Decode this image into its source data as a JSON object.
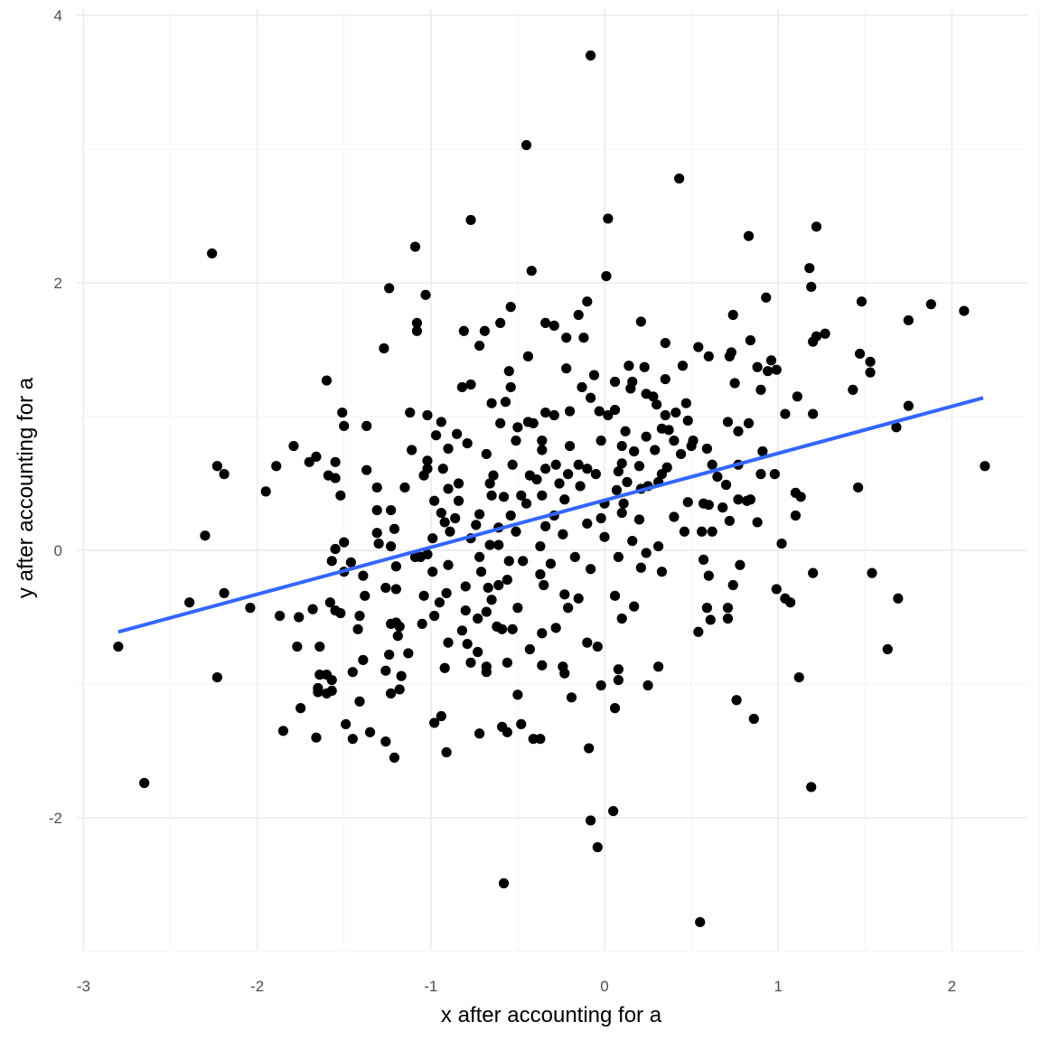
{
  "chart_data": {
    "type": "scatter",
    "title": "",
    "xlabel": "x after accounting for a",
    "ylabel": "y after accounting for a",
    "xlim": [
      -3.04,
      2.42
    ],
    "ylim": [
      -2.98,
      4.0
    ],
    "x_ticks": [
      -3,
      -2,
      -1,
      0,
      1,
      2
    ],
    "y_ticks": [
      -2,
      0,
      2,
      4
    ],
    "x_tick_labels": [
      "-3",
      "-2",
      "-1",
      "0",
      "1",
      "2"
    ],
    "y_tick_labels": [
      "-2",
      "0",
      "2",
      "4"
    ],
    "grid": true,
    "point_color": "#000000",
    "fit_line": {
      "type": "linear",
      "color": "#3366FF",
      "x": [
        -2.8,
        2.18
      ],
      "y": [
        -0.61,
        1.14
      ]
    },
    "points": [
      [
        -0.08,
        3.7
      ],
      [
        -0.45,
        3.03
      ],
      [
        0.43,
        2.78
      ],
      [
        0.02,
        2.48
      ],
      [
        -0.77,
        2.47
      ],
      [
        -2.26,
        2.22
      ],
      [
        1.22,
        2.42
      ],
      [
        0.83,
        2.35
      ],
      [
        -1.09,
        2.27
      ],
      [
        -0.42,
        2.09
      ],
      [
        0.01,
        2.05
      ],
      [
        1.18,
        2.11
      ],
      [
        1.19,
        1.97
      ],
      [
        -1.24,
        1.96
      ],
      [
        -1.03,
        1.91
      ],
      [
        0.93,
        1.89
      ],
      [
        1.48,
        1.86
      ],
      [
        1.88,
        1.84
      ],
      [
        2.07,
        1.79
      ],
      [
        1.75,
        1.72
      ],
      [
        -0.1,
        1.86
      ],
      [
        -0.54,
        1.82
      ],
      [
        0.74,
        1.76
      ],
      [
        -0.15,
        1.76
      ],
      [
        0.21,
        1.71
      ],
      [
        -1.08,
        1.7
      ],
      [
        -1.08,
        1.64
      ],
      [
        -0.6,
        1.7
      ],
      [
        -0.34,
        1.7
      ],
      [
        -0.29,
        1.68
      ],
      [
        -0.81,
        1.64
      ],
      [
        -0.69,
        1.64
      ],
      [
        -0.72,
        1.53
      ],
      [
        -0.22,
        1.59
      ],
      [
        -0.12,
        1.59
      ],
      [
        1.27,
        1.62
      ],
      [
        1.22,
        1.6
      ],
      [
        1.2,
        1.56
      ],
      [
        0.84,
        1.57
      ],
      [
        0.35,
        1.55
      ],
      [
        0.54,
        1.52
      ],
      [
        -1.27,
        1.51
      ],
      [
        -0.44,
        1.45
      ],
      [
        0.73,
        1.48
      ],
      [
        0.72,
        1.45
      ],
      [
        0.6,
        1.45
      ],
      [
        1.47,
        1.47
      ],
      [
        1.53,
        1.41
      ],
      [
        1.53,
        1.33
      ],
      [
        0.96,
        1.42
      ],
      [
        0.88,
        1.37
      ],
      [
        0.99,
        1.35
      ],
      [
        0.94,
        1.34
      ],
      [
        0.45,
        1.38
      ],
      [
        -0.22,
        1.36
      ],
      [
        -0.55,
        1.34
      ],
      [
        0.23,
        1.37
      ],
      [
        0.14,
        1.38
      ],
      [
        -0.06,
        1.31
      ],
      [
        0.35,
        1.28
      ],
      [
        -1.6,
        1.27
      ],
      [
        0.06,
        1.26
      ],
      [
        0.16,
        1.26
      ],
      [
        0.75,
        1.25
      ],
      [
        -0.13,
        1.22
      ],
      [
        -0.82,
        1.22
      ],
      [
        -0.77,
        1.24
      ],
      [
        -0.54,
        1.22
      ],
      [
        0.15,
        1.21
      ],
      [
        1.43,
        1.2
      ],
      [
        0.9,
        1.2
      ],
      [
        1.11,
        1.15
      ],
      [
        -0.08,
        1.14
      ],
      [
        0.24,
        1.17
      ],
      [
        0.28,
        1.15
      ],
      [
        0.3,
        1.09
      ],
      [
        0.47,
        1.1
      ],
      [
        -0.65,
        1.1
      ],
      [
        -0.57,
        1.11
      ],
      [
        -1.51,
        1.03
      ],
      [
        -1.12,
        1.03
      ],
      [
        1.75,
        1.08
      ],
      [
        1.04,
        1.02
      ],
      [
        1.2,
        1.02
      ],
      [
        -1.02,
        1.01
      ],
      [
        -0.34,
        1.03
      ],
      [
        -0.29,
        1.01
      ],
      [
        -0.2,
        1.04
      ],
      [
        -0.03,
        1.04
      ],
      [
        0.06,
        1.05
      ],
      [
        0.02,
        1.01
      ],
      [
        0.41,
        1.03
      ],
      [
        0.35,
        1.01
      ],
      [
        -1.5,
        0.93
      ],
      [
        -1.37,
        0.93
      ],
      [
        -0.6,
        0.95
      ],
      [
        -0.44,
        0.96
      ],
      [
        -0.41,
        0.95
      ],
      [
        -0.5,
        0.92
      ],
      [
        -0.94,
        0.96
      ],
      [
        0.48,
        0.97
      ],
      [
        0.71,
        0.96
      ],
      [
        0.83,
        0.95
      ],
      [
        1.68,
        0.92
      ],
      [
        0.12,
        0.89
      ],
      [
        0.33,
        0.91
      ],
      [
        0.37,
        0.9
      ],
      [
        0.24,
        0.85
      ],
      [
        -0.97,
        0.86
      ],
      [
        -0.85,
        0.87
      ],
      [
        0.77,
        0.89
      ],
      [
        -0.51,
        0.82
      ],
      [
        -0.36,
        0.82
      ],
      [
        -0.02,
        0.82
      ],
      [
        -0.79,
        0.8
      ],
      [
        0.4,
        0.82
      ],
      [
        0.51,
        0.82
      ],
      [
        0.5,
        0.78
      ],
      [
        -1.79,
        0.78
      ],
      [
        -0.36,
        0.75
      ],
      [
        -0.2,
        0.78
      ],
      [
        0.1,
        0.78
      ],
      [
        -1.11,
        0.75
      ],
      [
        -0.9,
        0.76
      ],
      [
        0.29,
        0.75
      ],
      [
        0.59,
        0.76
      ],
      [
        0.91,
        0.74
      ],
      [
        -0.68,
        0.72
      ],
      [
        -1.66,
        0.7
      ],
      [
        0.17,
        0.74
      ],
      [
        0.44,
        0.72
      ],
      [
        -1.02,
        0.67
      ],
      [
        -1.7,
        0.66
      ],
      [
        -1.55,
        0.66
      ],
      [
        -0.53,
        0.64
      ],
      [
        -0.28,
        0.64
      ],
      [
        -0.15,
        0.64
      ],
      [
        -1.02,
        0.61
      ],
      [
        -0.93,
        0.61
      ],
      [
        -0.34,
        0.61
      ],
      [
        -0.1,
        0.61
      ],
      [
        0.1,
        0.65
      ],
      [
        0.2,
        0.63
      ],
      [
        0.36,
        0.62
      ],
      [
        0.62,
        0.64
      ],
      [
        0.77,
        0.64
      ],
      [
        -2.23,
        0.63
      ],
      [
        -1.89,
        0.63
      ],
      [
        2.19,
        0.63
      ],
      [
        -2.19,
        0.57
      ],
      [
        -1.59,
        0.56
      ],
      [
        -1.37,
        0.6
      ],
      [
        -1.04,
        0.56
      ],
      [
        -0.64,
        0.56
      ],
      [
        -0.43,
        0.56
      ],
      [
        -0.21,
        0.57
      ],
      [
        -0.05,
        0.57
      ],
      [
        0.08,
        0.59
      ],
      [
        0.33,
        0.57
      ],
      [
        0.65,
        0.55
      ],
      [
        0.9,
        0.57
      ],
      [
        0.98,
        0.57
      ],
      [
        -1.55,
        0.54
      ],
      [
        -0.39,
        0.53
      ],
      [
        -0.84,
        0.5
      ],
      [
        -0.66,
        0.5
      ],
      [
        -0.26,
        0.5
      ],
      [
        -0.14,
        0.48
      ],
      [
        0.13,
        0.51
      ],
      [
        0.25,
        0.48
      ],
      [
        0.31,
        0.51
      ],
      [
        0.7,
        0.49
      ],
      [
        -1.31,
        0.47
      ],
      [
        -1.15,
        0.47
      ],
      [
        1.46,
        0.47
      ],
      [
        -0.9,
        0.46
      ],
      [
        0.07,
        0.45
      ],
      [
        0.21,
        0.46
      ],
      [
        -1.95,
        0.44
      ],
      [
        1.1,
        0.43
      ],
      [
        1.13,
        0.4
      ],
      [
        -1.52,
        0.41
      ],
      [
        -0.65,
        0.41
      ],
      [
        -0.58,
        0.4
      ],
      [
        -0.48,
        0.41
      ],
      [
        -0.36,
        0.41
      ],
      [
        -0.84,
        0.37
      ],
      [
        -0.98,
        0.37
      ],
      [
        0.48,
        0.36
      ],
      [
        0.57,
        0.35
      ],
      [
        0.6,
        0.34
      ],
      [
        0.77,
        0.38
      ],
      [
        0.82,
        0.37
      ],
      [
        0.84,
        0.38
      ],
      [
        -0.45,
        0.35
      ],
      [
        0.0,
        0.35
      ],
      [
        0.11,
        0.35
      ],
      [
        -0.23,
        0.38
      ],
      [
        0.68,
        0.32
      ],
      [
        -1.31,
        0.3
      ],
      [
        -1.23,
        0.3
      ],
      [
        -0.94,
        0.28
      ],
      [
        -0.72,
        0.27
      ],
      [
        -0.54,
        0.26
      ],
      [
        -0.29,
        0.26
      ],
      [
        -0.02,
        0.24
      ],
      [
        0.1,
        0.28
      ],
      [
        0.2,
        0.23
      ],
      [
        0.4,
        0.25
      ],
      [
        1.1,
        0.26
      ],
      [
        -0.86,
        0.24
      ],
      [
        -0.92,
        0.21
      ],
      [
        -0.74,
        0.19
      ],
      [
        -0.61,
        0.17
      ],
      [
        -0.34,
        0.18
      ],
      [
        -0.1,
        0.2
      ],
      [
        0.72,
        0.22
      ],
      [
        0.88,
        0.21
      ],
      [
        -1.31,
        0.13
      ],
      [
        -1.21,
        0.16
      ],
      [
        -2.3,
        0.11
      ],
      [
        -0.89,
        0.14
      ],
      [
        -0.77,
        0.09
      ],
      [
        -0.51,
        0.14
      ],
      [
        -0.24,
        0.12
      ],
      [
        0.56,
        0.14
      ],
      [
        0.62,
        0.14
      ],
      [
        0.46,
        0.14
      ],
      [
        -1.5,
        0.06
      ],
      [
        -1.3,
        0.05
      ],
      [
        -1.23,
        0.03
      ],
      [
        -0.99,
        0.09
      ],
      [
        -0.66,
        0.04
      ],
      [
        -0.37,
        0.03
      ],
      [
        0.0,
        0.1
      ],
      [
        0.16,
        0.07
      ],
      [
        0.31,
        0.03
      ],
      [
        1.02,
        0.05
      ],
      [
        -1.55,
        0.01
      ],
      [
        -0.61,
        0.04
      ],
      [
        -1.02,
        -0.03
      ],
      [
        -1.09,
        -0.05
      ],
      [
        -1.06,
        -0.05
      ],
      [
        -0.72,
        -0.05
      ],
      [
        -0.47,
        -0.08
      ],
      [
        -0.17,
        -0.05
      ],
      [
        0.08,
        -0.05
      ],
      [
        0.24,
        -0.02
      ],
      [
        0.57,
        -0.07
      ],
      [
        -1.57,
        -0.08
      ],
      [
        -1.46,
        -0.09
      ],
      [
        -0.9,
        -0.11
      ],
      [
        -0.55,
        -0.08
      ],
      [
        -0.31,
        -0.1
      ],
      [
        -0.08,
        -0.14
      ],
      [
        -1.2,
        -0.12
      ],
      [
        0.78,
        -0.11
      ],
      [
        0.21,
        -0.13
      ],
      [
        0.33,
        -0.16
      ],
      [
        -1.5,
        -0.16
      ],
      [
        -1.39,
        -0.19
      ],
      [
        -0.99,
        -0.16
      ],
      [
        -0.71,
        -0.16
      ],
      [
        -0.37,
        -0.18
      ],
      [
        1.2,
        -0.17
      ],
      [
        1.54,
        -0.17
      ],
      [
        0.6,
        -0.19
      ],
      [
        -0.56,
        -0.22
      ],
      [
        -0.35,
        -0.26
      ],
      [
        -0.61,
        -0.26
      ],
      [
        -0.8,
        -0.27
      ],
      [
        -0.67,
        -0.28
      ],
      [
        -1.26,
        -0.28
      ],
      [
        -1.2,
        -0.29
      ],
      [
        0.74,
        -0.26
      ],
      [
        -2.19,
        -0.32
      ],
      [
        -1.38,
        -0.34
      ],
      [
        -1.04,
        -0.34
      ],
      [
        -0.91,
        -0.32
      ],
      [
        -0.23,
        -0.33
      ],
      [
        -0.15,
        -0.36
      ],
      [
        0.06,
        -0.34
      ],
      [
        0.99,
        -0.29
      ],
      [
        1.04,
        -0.36
      ],
      [
        1.07,
        -0.39
      ],
      [
        -0.95,
        -0.39
      ],
      [
        -0.65,
        -0.37
      ],
      [
        1.69,
        -0.36
      ],
      [
        -2.39,
        -0.39
      ],
      [
        -1.58,
        -0.39
      ],
      [
        -2.04,
        -0.43
      ],
      [
        -0.21,
        -0.43
      ],
      [
        -0.5,
        -0.43
      ],
      [
        -1.68,
        -0.44
      ],
      [
        -1.55,
        -0.45
      ],
      [
        -1.52,
        -0.47
      ],
      [
        -0.8,
        -0.45
      ],
      [
        -0.68,
        -0.46
      ],
      [
        0.17,
        -0.42
      ],
      [
        0.59,
        -0.43
      ],
      [
        0.71,
        -0.43
      ],
      [
        -1.87,
        -0.49
      ],
      [
        -1.76,
        -0.5
      ],
      [
        -1.41,
        -0.49
      ],
      [
        -0.98,
        -0.49
      ],
      [
        -0.73,
        -0.51
      ],
      [
        0.61,
        -0.52
      ],
      [
        0.71,
        -0.51
      ],
      [
        0.1,
        -0.51
      ],
      [
        -1.23,
        -0.55
      ],
      [
        -1.2,
        -0.54
      ],
      [
        -1.18,
        -0.57
      ],
      [
        -1.05,
        -0.55
      ],
      [
        -1.42,
        -0.59
      ],
      [
        -0.82,
        -0.6
      ],
      [
        -0.62,
        -0.57
      ],
      [
        -0.59,
        -0.59
      ],
      [
        -0.53,
        -0.59
      ],
      [
        -0.28,
        -0.58
      ],
      [
        -0.36,
        -0.62
      ],
      [
        0.54,
        -0.61
      ],
      [
        -1.19,
        -0.64
      ],
      [
        -2.8,
        -0.72
      ],
      [
        -1.77,
        -0.72
      ],
      [
        -1.64,
        -0.72
      ],
      [
        -0.9,
        -0.69
      ],
      [
        -0.79,
        -0.7
      ],
      [
        -0.1,
        -0.69
      ],
      [
        -0.04,
        -0.72
      ],
      [
        -0.43,
        -0.74
      ],
      [
        1.63,
        -0.74
      ],
      [
        -1.24,
        -0.78
      ],
      [
        -1.13,
        -0.77
      ],
      [
        -0.73,
        -0.76
      ],
      [
        -1.39,
        -0.82
      ],
      [
        -0.77,
        -0.84
      ],
      [
        -0.68,
        -0.87
      ],
      [
        -0.92,
        -0.88
      ],
      [
        -0.56,
        -0.84
      ],
      [
        -0.36,
        -0.86
      ],
      [
        -0.24,
        -0.87
      ],
      [
        0.31,
        -0.87
      ],
      [
        0.08,
        -0.89
      ],
      [
        -1.45,
        -0.91
      ],
      [
        -1.64,
        -0.93
      ],
      [
        -1.6,
        -0.93
      ],
      [
        -1.26,
        -0.9
      ],
      [
        -0.68,
        -0.91
      ],
      [
        -0.23,
        -0.92
      ],
      [
        -1.17,
        -0.94
      ],
      [
        -2.23,
        -0.95
      ],
      [
        1.12,
        -0.95
      ],
      [
        -1.57,
        -0.97
      ],
      [
        0.08,
        -0.97
      ],
      [
        -0.02,
        -1.01
      ],
      [
        0.25,
        -1.01
      ],
      [
        -1.65,
        -1.03
      ],
      [
        -1.18,
        -1.04
      ],
      [
        -1.65,
        -1.06
      ],
      [
        -1.6,
        -1.07
      ],
      [
        -1.23,
        -1.07
      ],
      [
        -1.57,
        -1.05
      ],
      [
        -0.5,
        -1.08
      ],
      [
        -0.19,
        -1.1
      ],
      [
        -1.41,
        -1.13
      ],
      [
        0.76,
        -1.12
      ],
      [
        0.06,
        -1.18
      ],
      [
        -1.75,
        -1.18
      ],
      [
        0.86,
        -1.26
      ],
      [
        -0.94,
        -1.24
      ],
      [
        -0.98,
        -1.29
      ],
      [
        -1.49,
        -1.3
      ],
      [
        -0.48,
        -1.3
      ],
      [
        -0.59,
        -1.32
      ],
      [
        -1.85,
        -1.35
      ],
      [
        -1.35,
        -1.36
      ],
      [
        -0.72,
        -1.37
      ],
      [
        -0.56,
        -1.36
      ],
      [
        -1.45,
        -1.41
      ],
      [
        -0.41,
        -1.41
      ],
      [
        -0.37,
        -1.41
      ],
      [
        -1.66,
        -1.4
      ],
      [
        -1.26,
        -1.43
      ],
      [
        -0.09,
        -1.48
      ],
      [
        -0.91,
        -1.51
      ],
      [
        -1.21,
        -1.55
      ],
      [
        -2.65,
        -1.74
      ],
      [
        1.19,
        -1.77
      ],
      [
        0.05,
        -1.95
      ],
      [
        -0.08,
        -2.02
      ],
      [
        -0.04,
        -2.22
      ],
      [
        -0.58,
        -2.49
      ],
      [
        0.55,
        -2.78
      ]
    ]
  }
}
